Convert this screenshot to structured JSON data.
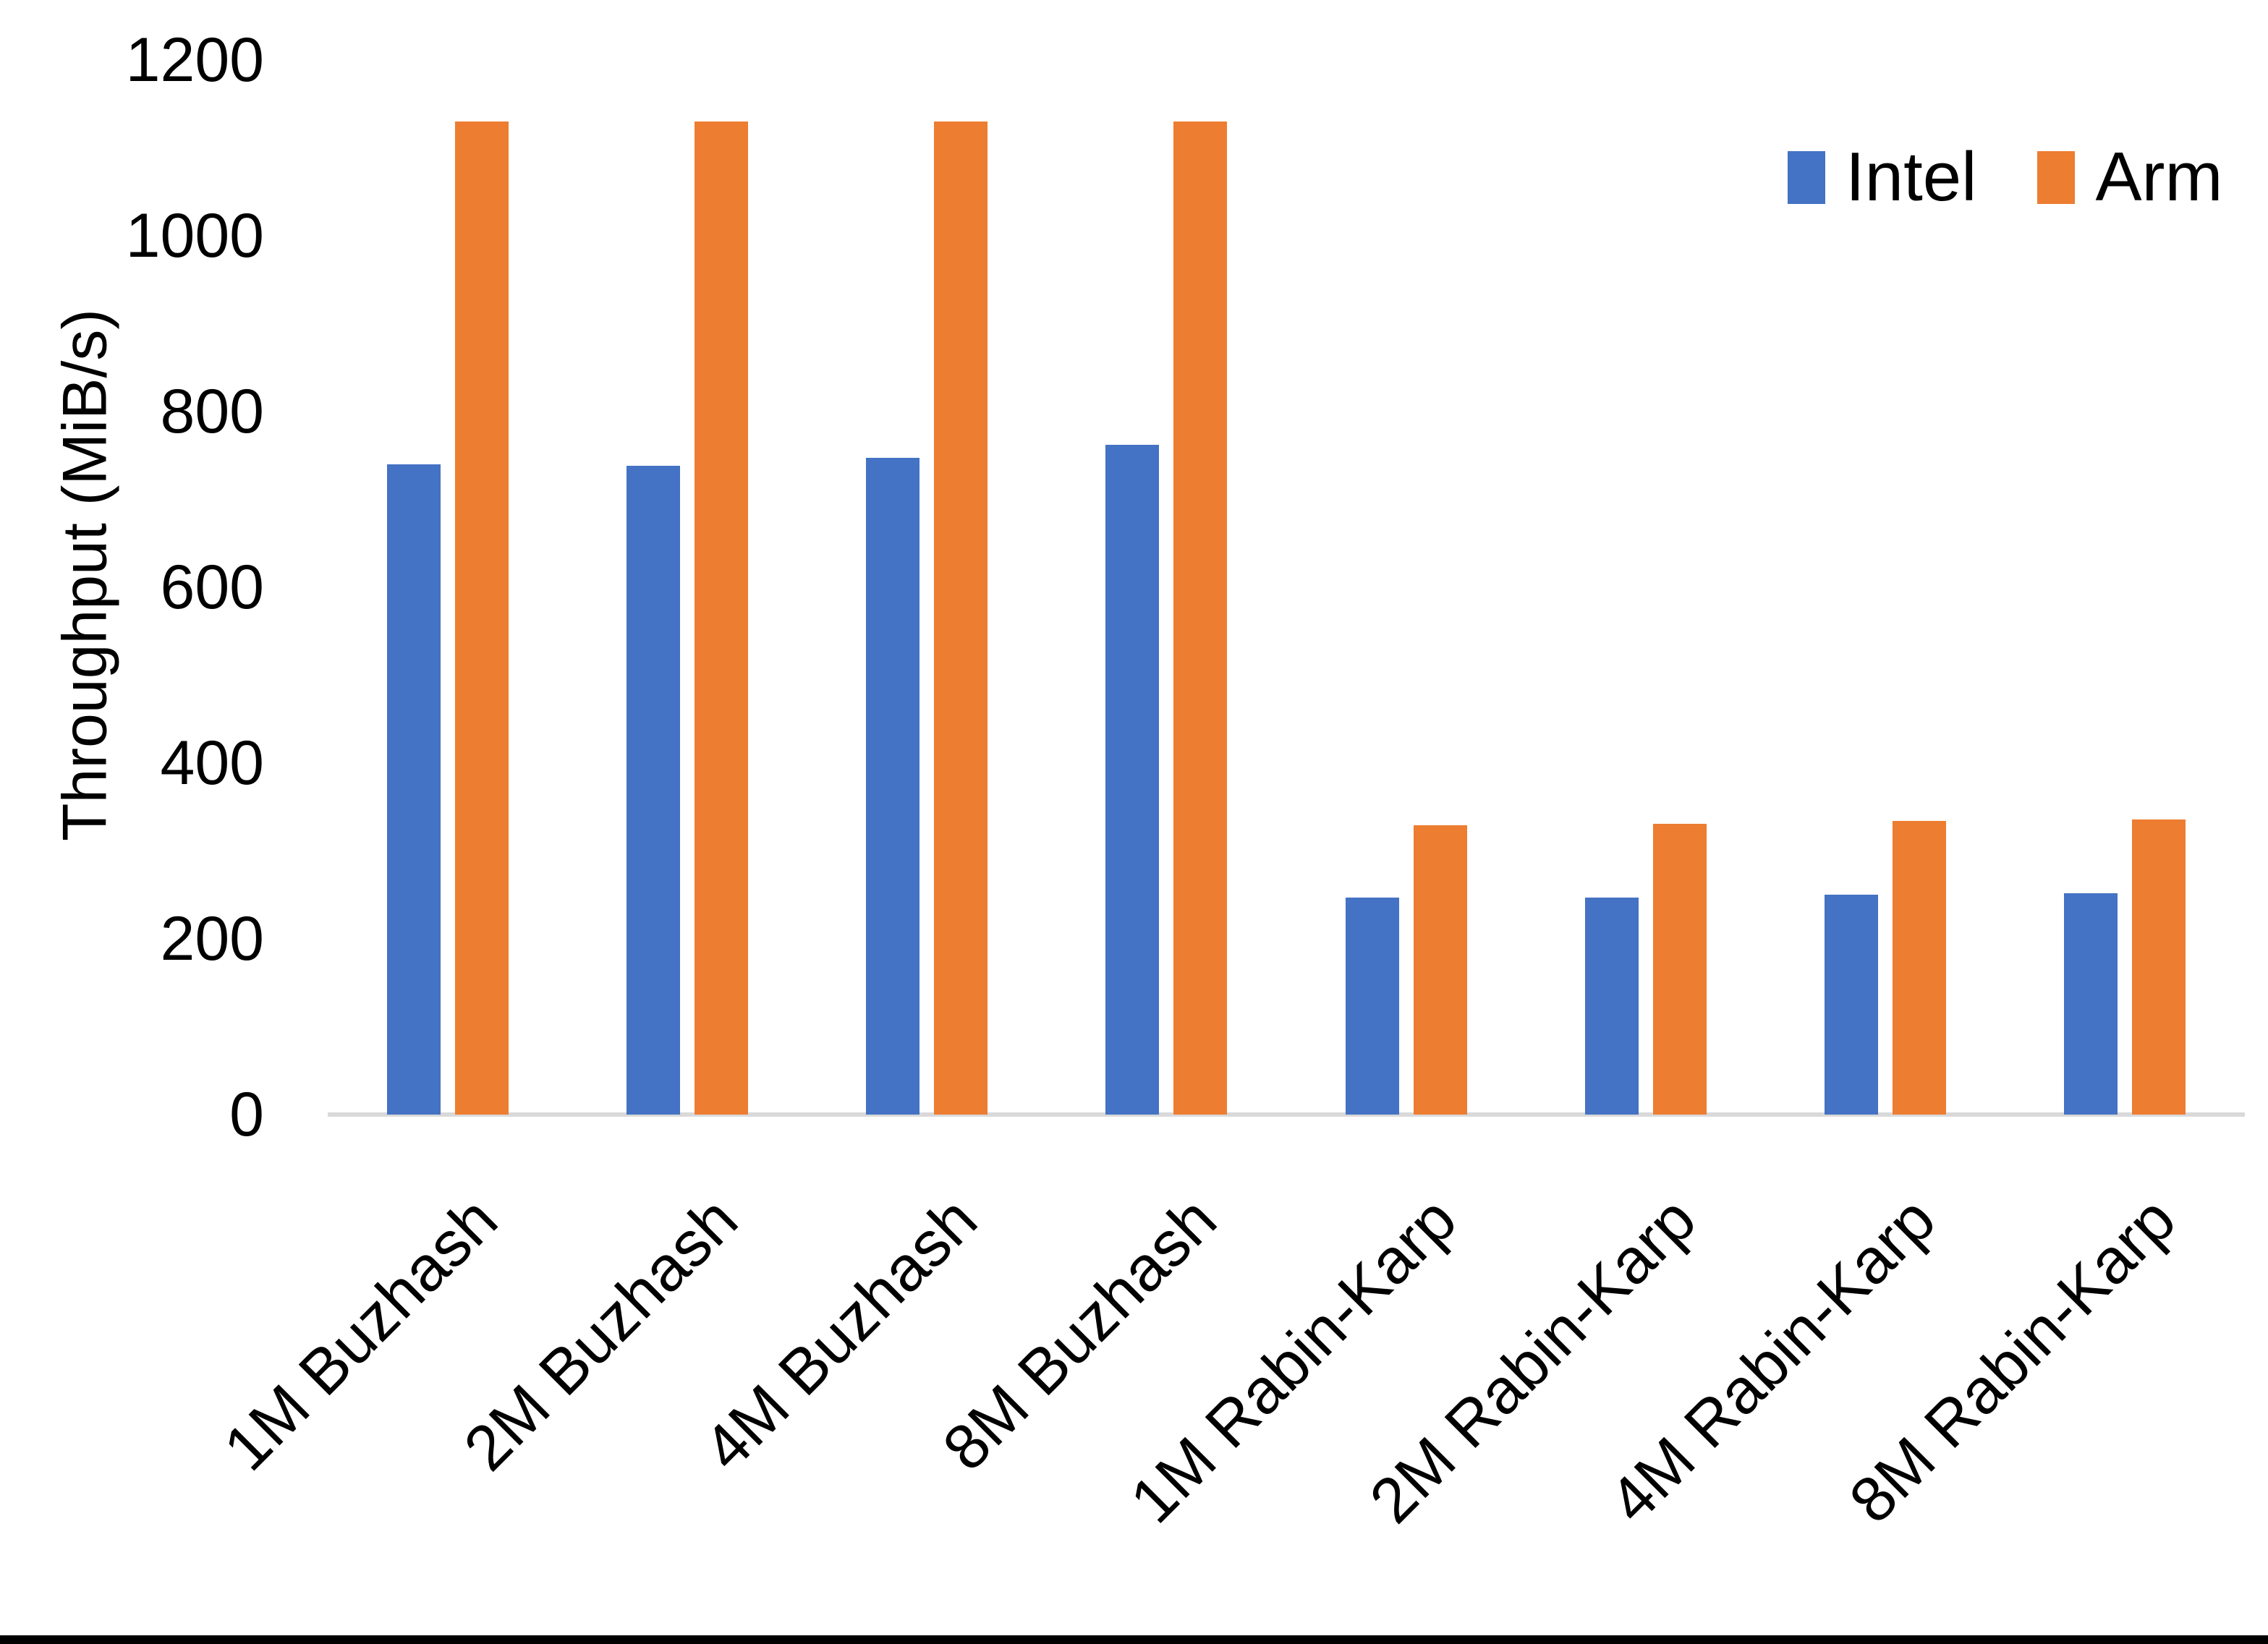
{
  "chart_data": {
    "type": "bar",
    "title": "",
    "xlabel": "",
    "ylabel": "Throughput (MiB/s)",
    "categories": [
      "1M Buzhash",
      "2M Buzhash",
      "4M Buzhash",
      "8M Buzhash",
      "1M Rabin-Karp",
      "2M Rabin-Karp",
      "4M Rabin-Karp",
      "8M Rabin-Karp"
    ],
    "series": [
      {
        "name": "Intel",
        "color": "#4472C4",
        "values": [
          740,
          738,
          747,
          762,
          247,
          247,
          250,
          252
        ]
      },
      {
        "name": "Arm",
        "color": "#ED7D31",
        "values": [
          1130,
          1130,
          1130,
          1130,
          329,
          331,
          334,
          336
        ]
      }
    ],
    "ylim": [
      0,
      1200
    ],
    "ytick_step": 200,
    "yticks": [
      "0",
      "200",
      "400",
      "600",
      "800",
      "1000",
      "1200"
    ],
    "grid": "off",
    "legend_position": "top-right",
    "axis_line_color": "#D9D9D9",
    "text_color": "#000000",
    "background_color": "#FFFFFF"
  }
}
